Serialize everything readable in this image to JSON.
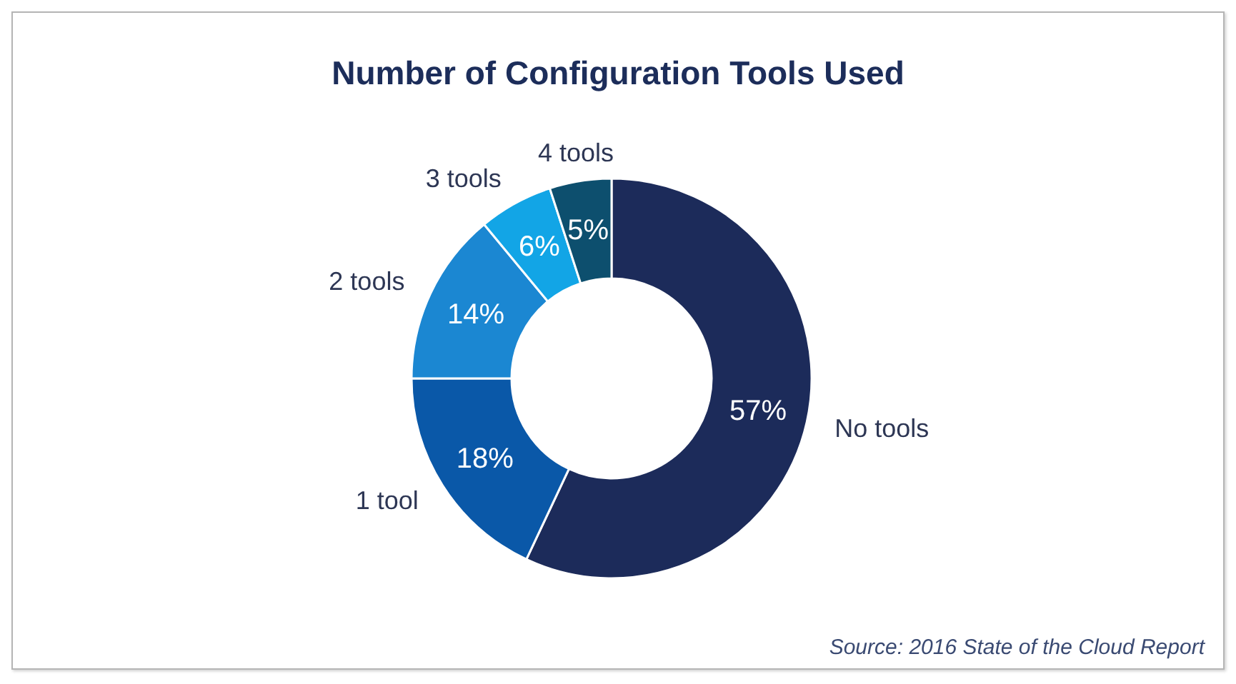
{
  "chart_data": {
    "type": "donut",
    "title": "Number of Configuration Tools Used",
    "categories": [
      "No tools",
      "1 tool",
      "2 tools",
      "3 tools",
      "4 tools"
    ],
    "values": [
      57,
      18,
      14,
      6,
      5
    ],
    "colors": [
      "#1c2b5a",
      "#0a58a8",
      "#1b87d2",
      "#12a5e6",
      "#0d4f6e"
    ],
    "value_labels": [
      "57%",
      "18%",
      "14%",
      "6%",
      "5%"
    ],
    "annotations": [
      "Source: 2016 State of the Cloud Report"
    ]
  }
}
